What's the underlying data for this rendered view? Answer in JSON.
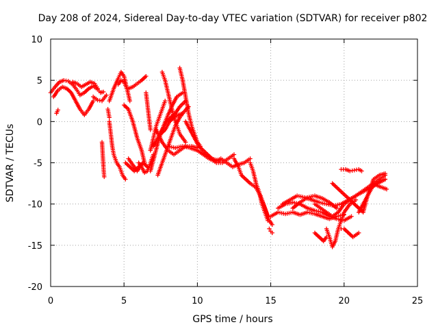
{
  "chart_data": {
    "type": "scatter",
    "title": "Day 208 of 2024, Sidereal Day-to-day VTEC variation (SDTVAR) for receiver p802",
    "xlabel": "GPS time / hours",
    "ylabel": "SDTVAR / TECUs",
    "xlim": [
      0,
      25
    ],
    "ylim": [
      -20,
      10
    ],
    "xticks": [
      0,
      5,
      10,
      15,
      20,
      25
    ],
    "yticks": [
      -20,
      -15,
      -10,
      -5,
      0,
      5,
      10
    ],
    "grid": true,
    "marker": "plus",
    "series_color": "#ff0000",
    "series": [
      {
        "x": [
          0.0,
          0.3,
          0.6,
          0.9,
          1.2,
          1.5,
          1.8,
          2.0,
          2.3,
          2.6,
          2.9,
          3.2,
          3.4,
          3.6
        ],
        "y": [
          3.5,
          4.2,
          4.8,
          5.0,
          4.9,
          4.5,
          3.8,
          3.2,
          3.5,
          4.0,
          4.3,
          3.9,
          3.5,
          3.6
        ]
      },
      {
        "x": [
          0.2,
          0.5,
          0.8,
          1.1,
          1.4,
          1.7,
          2.0,
          2.3,
          2.6,
          2.9
        ],
        "y": [
          3.0,
          3.8,
          4.2,
          4.0,
          3.5,
          2.5,
          1.5,
          0.8,
          1.5,
          2.5
        ]
      },
      {
        "x": [
          0.4,
          0.5
        ],
        "y": [
          1.0,
          1.4
        ]
      },
      {
        "x": [
          1.5,
          1.8,
          2.1,
          2.4,
          2.7,
          3.0,
          3.2
        ],
        "y": [
          4.8,
          4.6,
          4.2,
          4.5,
          4.8,
          4.6,
          4.0
        ]
      },
      {
        "x": [
          2.9,
          3.2,
          3.5,
          3.8
        ],
        "y": [
          3.0,
          2.6,
          2.5,
          3.2
        ]
      },
      {
        "x": [
          3.5,
          3.55,
          3.6,
          3.65
        ],
        "y": [
          -2.5,
          -4.0,
          -5.5,
          -6.7
        ]
      },
      {
        "x": [
          4.0,
          4.3,
          4.6,
          4.8,
          5.0,
          5.2,
          5.4
        ],
        "y": [
          2.5,
          4.0,
          5.2,
          6.0,
          5.5,
          4.0,
          2.5
        ]
      },
      {
        "x": [
          4.6,
          4.8,
          5.0,
          5.2
        ],
        "y": [
          4.5,
          5.0,
          4.8,
          4.0
        ]
      },
      {
        "x": [
          4.0,
          4.1,
          4.2,
          4.3,
          4.5,
          4.7,
          4.9,
          5.1
        ],
        "y": [
          0.0,
          -1.5,
          -3.0,
          -4.0,
          -5.0,
          -5.5,
          -6.5,
          -7.0
        ]
      },
      {
        "x": [
          3.9,
          4.0
        ],
        "y": [
          1.5,
          0.5
        ]
      },
      {
        "x": [
          5.3,
          5.6,
          5.9,
          6.2,
          6.5
        ],
        "y": [
          4.0,
          4.2,
          4.6,
          5.0,
          5.5
        ]
      },
      {
        "x": [
          5.0,
          5.3,
          5.6,
          5.9,
          6.2,
          6.4
        ],
        "y": [
          2.0,
          1.5,
          0.0,
          -2.0,
          -3.5,
          -5.0
        ]
      },
      {
        "x": [
          5.1,
          5.4,
          5.7,
          6.0,
          6.3,
          6.6
        ],
        "y": [
          -5.0,
          -5.5,
          -6.0,
          -5.5,
          -5.0,
          -5.5
        ]
      },
      {
        "x": [
          5.3,
          5.5,
          5.7,
          5.9,
          6.1,
          6.3,
          6.6
        ],
        "y": [
          -4.5,
          -5.0,
          -5.5,
          -6.0,
          -5.5,
          -5.0,
          -5.5
        ]
      },
      {
        "x": [
          6.0,
          6.2,
          6.4,
          6.6,
          6.8,
          7.0
        ],
        "y": [
          -5.0,
          -5.5,
          -6.2,
          -6.0,
          -5.0,
          -4.0
        ]
      },
      {
        "x": [
          6.8,
          7.0,
          7.2,
          7.4,
          7.6,
          7.8
        ],
        "y": [
          -3.5,
          -2.0,
          -0.5,
          0.5,
          1.5,
          2.5
        ]
      },
      {
        "x": [
          6.8,
          7.1,
          7.4,
          7.7,
          8.0,
          8.3,
          8.6,
          9.0
        ],
        "y": [
          -6.0,
          -4.0,
          -2.0,
          -0.5,
          0.8,
          2.0,
          3.0,
          3.5
        ]
      },
      {
        "x": [
          7.0,
          7.3,
          7.6,
          7.9,
          8.2,
          8.5,
          8.8,
          9.2
        ],
        "y": [
          -3.0,
          -2.0,
          -1.0,
          0.0,
          0.5,
          1.0,
          1.8,
          2.5
        ]
      },
      {
        "x": [
          7.3,
          7.6,
          7.9,
          8.2,
          8.5,
          8.8,
          9.1,
          9.4
        ],
        "y": [
          -6.5,
          -5.0,
          -3.5,
          -2.0,
          -0.5,
          0.5,
          1.2,
          1.8
        ]
      },
      {
        "x": [
          7.5,
          7.8,
          8.1,
          8.4,
          8.7,
          9.0
        ],
        "y": [
          -1.5,
          -1.0,
          0.0,
          0.5,
          0.8,
          1.0
        ]
      },
      {
        "x": [
          6.5,
          6.6,
          6.7,
          6.8
        ],
        "y": [
          3.5,
          2.0,
          0.5,
          -1.0
        ]
      },
      {
        "x": [
          7.6,
          7.8,
          8.0,
          8.2,
          8.4,
          8.6,
          8.8,
          9.0,
          9.2
        ],
        "y": [
          6.0,
          5.0,
          3.5,
          2.0,
          0.5,
          -0.5,
          -1.5,
          -2.0,
          -2.5
        ]
      },
      {
        "x": [
          8.8,
          9.0,
          9.2,
          9.4,
          9.6,
          9.8,
          10.0,
          10.2
        ],
        "y": [
          6.5,
          5.0,
          3.0,
          1.0,
          -0.5,
          -1.5,
          -2.5,
          -3.0
        ]
      },
      {
        "x": [
          9.2,
          9.5,
          9.8,
          10.1,
          10.4,
          10.7,
          11.0
        ],
        "y": [
          0.0,
          -1.0,
          -2.0,
          -3.0,
          -3.5,
          -4.0,
          -4.5
        ]
      },
      {
        "x": [
          7.2,
          7.6,
          8.0,
          8.4,
          8.8,
          9.2,
          9.6,
          10.0
        ],
        "y": [
          -1.0,
          -2.5,
          -3.5,
          -4.0,
          -3.5,
          -3.0,
          -3.0,
          -3.2
        ]
      },
      {
        "x": [
          8.0,
          8.5,
          9.0,
          9.5,
          10.0,
          10.5,
          11.0,
          11.5
        ],
        "y": [
          -3.0,
          -3.2,
          -3.0,
          -3.2,
          -3.5,
          -4.0,
          -4.5,
          -4.8
        ]
      },
      {
        "x": [
          10.0,
          10.4,
          10.8,
          11.2,
          11.6,
          12.0,
          12.4,
          12.8,
          13.2,
          13.6
        ],
        "y": [
          -3.5,
          -4.0,
          -4.5,
          -4.8,
          -4.5,
          -5.0,
          -5.5,
          -5.2,
          -5.0,
          -4.5
        ]
      },
      {
        "x": [
          10.5,
          10.9,
          11.3,
          11.7,
          12.1,
          12.5
        ],
        "y": [
          -4.0,
          -4.5,
          -5.0,
          -5.0,
          -4.5,
          -4.0
        ]
      },
      {
        "x": [
          12.5,
          12.8,
          13.0,
          13.3,
          13.6,
          14.0,
          14.3,
          14.6,
          14.8
        ],
        "y": [
          -4.5,
          -5.5,
          -6.5,
          -7.0,
          -7.5,
          -8.0,
          -9.0,
          -10.5,
          -11.5
        ]
      },
      {
        "x": [
          13.6,
          13.8,
          14.0,
          14.2,
          14.4,
          14.6,
          14.8
        ],
        "y": [
          -5.0,
          -6.0,
          -7.5,
          -8.5,
          -10.0,
          -11.0,
          -12.0
        ]
      },
      {
        "x": [
          14.3,
          14.5,
          14.7,
          14.9,
          15.1
        ],
        "y": [
          -9.0,
          -10.0,
          -11.0,
          -12.0,
          -12.5
        ]
      },
      {
        "x": [
          14.9,
          15.0,
          15.1
        ],
        "y": [
          -13.0,
          -13.3,
          -13.5
        ]
      },
      {
        "x": [
          15.0,
          15.5,
          16.0,
          16.5,
          17.0,
          17.5,
          18.0,
          18.5,
          19.0,
          19.5,
          20.0
        ],
        "y": [
          -11.5,
          -11.0,
          -11.2,
          -11.0,
          -11.3,
          -11.0,
          -11.2,
          -11.5,
          -11.8,
          -11.5,
          -11.3
        ]
      },
      {
        "x": [
          15.5,
          16.0,
          16.5,
          17.0,
          17.5,
          18.0,
          18.5,
          19.0,
          19.5,
          20.0,
          20.5
        ],
        "y": [
          -10.5,
          -10.0,
          -9.8,
          -10.0,
          -10.5,
          -10.8,
          -11.0,
          -11.5,
          -11.8,
          -12.0,
          -11.5
        ]
      },
      {
        "x": [
          15.8,
          16.3,
          16.8,
          17.3,
          17.8,
          18.3,
          18.8,
          19.3,
          19.8,
          20.3,
          20.8,
          21.3,
          21.8,
          22.3,
          22.8
        ],
        "y": [
          -10.0,
          -9.5,
          -9.0,
          -9.2,
          -9.5,
          -9.8,
          -10.0,
          -10.2,
          -10.0,
          -9.5,
          -9.0,
          -8.5,
          -8.0,
          -7.5,
          -7.0
        ]
      },
      {
        "x": [
          16.5,
          17.0,
          17.5,
          18.0,
          18.5,
          19.0,
          19.5
        ],
        "y": [
          -10.5,
          -9.8,
          -9.2,
          -9.0,
          -9.3,
          -9.8,
          -10.5
        ]
      },
      {
        "x": [
          18.0,
          18.4,
          18.8,
          19.2,
          19.6,
          20.0,
          20.4,
          20.8,
          21.2,
          21.6,
          22.0,
          22.4,
          22.8
        ],
        "y": [
          -10.0,
          -10.5,
          -11.0,
          -11.5,
          -11.0,
          -10.0,
          -9.5,
          -9.0,
          -8.5,
          -8.0,
          -7.5,
          -7.0,
          -6.5
        ]
      },
      {
        "x": [
          18.0,
          18.3,
          18.6,
          18.8
        ],
        "y": [
          -13.5,
          -14.0,
          -14.5,
          -14.0
        ]
      },
      {
        "x": [
          18.8,
          19.0,
          19.2,
          19.4,
          19.6,
          19.8,
          20.0,
          20.2,
          20.4,
          20.6,
          20.8
        ],
        "y": [
          -13.0,
          -14.0,
          -15.2,
          -14.5,
          -13.0,
          -12.0,
          -11.0,
          -10.5,
          -10.0,
          -9.8,
          -9.5
        ]
      },
      {
        "x": [
          19.8,
          20.0,
          20.3,
          20.6,
          21.0
        ],
        "y": [
          -13.0,
          -13.0,
          -13.5,
          -14.0,
          -13.5
        ]
      },
      {
        "x": [
          19.2,
          19.5,
          19.8,
          20.1,
          20.4,
          20.7,
          21.0,
          21.3,
          21.6,
          22.0,
          22.4,
          22.8
        ],
        "y": [
          -7.5,
          -8.0,
          -8.5,
          -9.0,
          -9.5,
          -10.0,
          -10.5,
          -11.0,
          -9.0,
          -7.0,
          -6.5,
          -6.3
        ]
      },
      {
        "x": [
          19.8,
          20.1,
          20.4,
          20.7,
          21.0,
          21.2
        ],
        "y": [
          -5.8,
          -5.8,
          -6.0,
          -5.9,
          -5.8,
          -6.0
        ]
      },
      {
        "x": [
          21.0,
          21.3,
          21.6,
          21.9,
          22.2,
          22.5,
          22.8
        ],
        "y": [
          -11.0,
          -10.0,
          -9.0,
          -8.0,
          -7.5,
          -7.2,
          -7.0
        ]
      },
      {
        "x": [
          22.0,
          22.3,
          22.6,
          22.9
        ],
        "y": [
          -7.5,
          -7.8,
          -8.0,
          -8.2
        ]
      }
    ]
  }
}
